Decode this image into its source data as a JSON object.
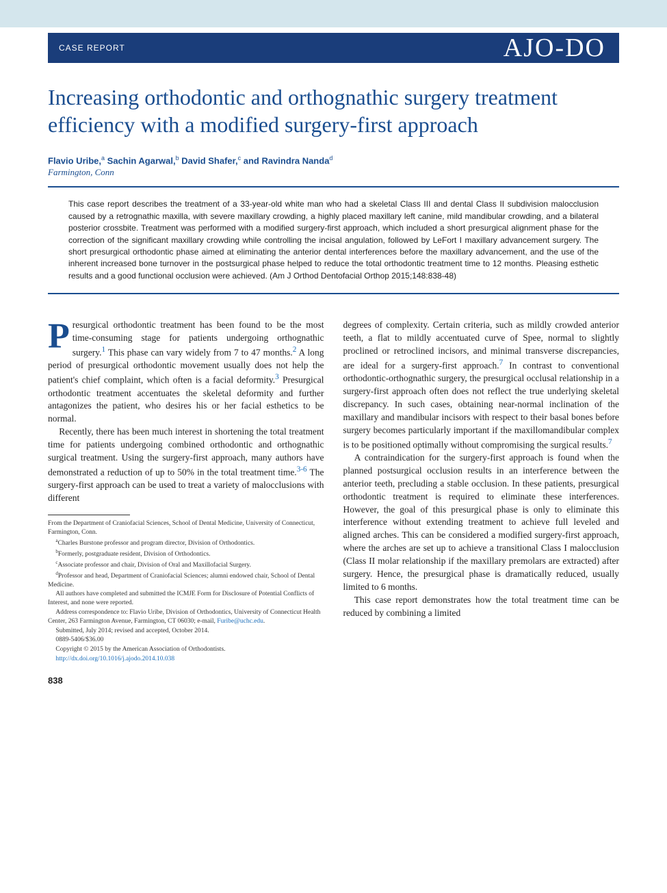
{
  "header": {
    "section_label": "CASE REPORT",
    "journal_logo": "AJO-DO"
  },
  "article": {
    "title": "Increasing orthodontic and orthognathic surgery treatment efficiency with a modified surgery-first approach",
    "authors_html": "Flavio Uribe,<sup>a</sup> Sachin Agarwal,<sup>b</sup> David Shafer,<sup>c</sup> and Ravindra Nanda<sup>d</sup>",
    "location": "Farmington, Conn"
  },
  "abstract": {
    "text": "This case report describes the treatment of a 33-year-old white man who had a skeletal Class III and dental Class II subdivision malocclusion caused by a retrognathic maxilla, with severe maxillary crowding, a highly placed maxillary left canine, mild mandibular crowding, and a bilateral posterior crossbite. Treatment was performed with a modified surgery-first approach, which included a short presurgical alignment phase for the correction of the significant maxillary crowding while controlling the incisal angulation, followed by LeFort I maxillary advancement surgery. The short presurgical orthodontic phase aimed at eliminating the anterior dental interferences before the maxillary advancement, and the use of the inherent increased bone turnover in the postsurgical phase helped to reduce the total orthodontic treatment time to 12 months. Pleasing esthetic results and a good functional occlusion were achieved. (Am J Orthod Dentofacial Orthop 2015;148:838-48)"
  },
  "body": {
    "left": {
      "p1_dropcap": "P",
      "p1_rest": "resurgical orthodontic treatment has been found to be the most time-consuming stage for patients undergoing orthognathic surgery.",
      "p1_ref1": "1",
      "p1_cont": " This phase can vary widely from 7 to 47 months.",
      "p1_ref2": "2",
      "p1_cont2": " A long period of presurgical orthodontic movement usually does not help the patient's chief complaint, which often is a facial deformity.",
      "p1_ref3": "3",
      "p1_cont3": " Presurgical orthodontic treatment accentuates the skeletal deformity and further antagonizes the patient, who desires his or her facial esthetics to be normal.",
      "p2": "Recently, there has been much interest in shortening the total treatment time for patients undergoing combined orthodontic and orthognathic surgical treatment. Using the surgery-first approach, many authors have demonstrated a reduction of up to 50% in the total treatment time.",
      "p2_ref": "3-6",
      "p2_cont": " The surgery-first approach can be used to treat a variety of malocclusions with different"
    },
    "right": {
      "p1": "degrees of complexity. Certain criteria, such as mildly crowded anterior teeth, a flat to mildly accentuated curve of Spee, normal to slightly proclined or retroclined incisors, and minimal transverse discrepancies, are ideal for a surgery-first approach.",
      "p1_ref": "7",
      "p1_cont": " In contrast to conventional orthodontic-orthognathic surgery, the presurgical occlusal relationship in a surgery-first approach often does not reflect the true underlying skeletal discrepancy. In such cases, obtaining near-normal inclination of the maxillary and mandibular incisors with respect to their basal bones before surgery becomes particularly important if the maxillomandibular complex is to be positioned optimally without compromising the surgical results.",
      "p1_ref2": "7",
      "p2": "A contraindication for the surgery-first approach is found when the planned postsurgical occlusion results in an interference between the anterior teeth, precluding a stable occlusion. In these patients, presurgical orthodontic treatment is required to eliminate these interferences. However, the goal of this presurgical phase is only to eliminate this interference without extending treatment to achieve full leveled and aligned arches. This can be considered a modified surgery-first approach, where the arches are set up to achieve a transitional Class I malocclusion (Class II molar relationship if the maxillary premolars are extracted) after surgery. Hence, the presurgical phase is dramatically reduced, usually limited to 6 months.",
      "p3": "This case report demonstrates how the total treatment time can be reduced by combining a limited"
    }
  },
  "footnotes": {
    "from": "From the Department of Craniofacial Sciences, School of Dental Medicine, University of Connecticut, Farmington, Conn.",
    "a": "Charles Burstone professor and program director, Division of Orthodontics.",
    "b": "Formerly, postgraduate resident, Division of Orthodontics.",
    "c": "Associate professor and chair, Division of Oral and Maxillofacial Surgery.",
    "d": "Professor and head, Department of Craniofacial Sciences; alumni endowed chair, School of Dental Medicine.",
    "disclosure": "All authors have completed and submitted the ICMJE Form for Disclosure of Potential Conflicts of Interest, and none were reported.",
    "correspondence": "Address correspondence to: Flavio Uribe, Division of Orthodontics, University of Connecticut Health Center, 263 Farmington Avenue, Farmington, CT 06030; e-mail, ",
    "email": "Furibe@uchc.edu",
    "submitted": "Submitted, July 2014; revised and accepted, October 2014.",
    "issn": "0889-5406/$36.00",
    "copyright": "Copyright © 2015 by the American Association of Orthodontists.",
    "doi": "http://dx.doi.org/10.1016/j.ajodo.2014.10.038"
  },
  "page_number": "838",
  "colors": {
    "brand_blue": "#1a3d7a",
    "title_blue": "#1a4d8f",
    "link_blue": "#1a6db8",
    "top_band": "#d4e6ed",
    "text": "#222222"
  }
}
